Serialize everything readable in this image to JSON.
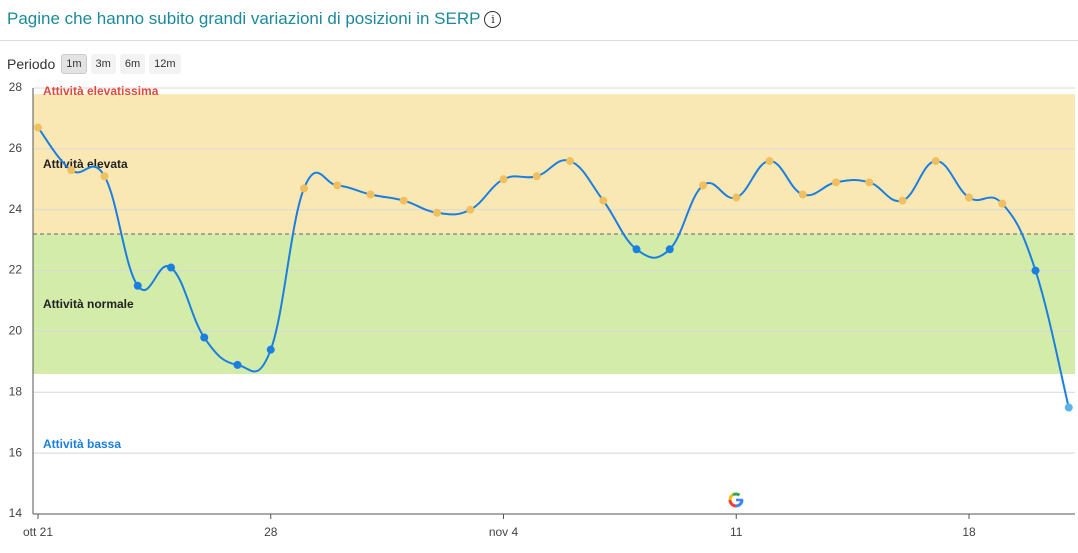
{
  "header": {
    "title": "Pagine che hanno subito grandi variazioni di posizioni in SERP",
    "period_label": "Periodo",
    "period_options": [
      "1m",
      "3m",
      "6m",
      "12m"
    ],
    "selected_period": "1m"
  },
  "chart_data": {
    "type": "line",
    "categories": [
      "ott 21",
      null,
      null,
      null,
      null,
      null,
      null,
      "28",
      null,
      null,
      null,
      null,
      null,
      null,
      "nov 4",
      null,
      null,
      null,
      null,
      null,
      null,
      "11",
      null,
      null,
      null,
      null,
      null,
      null,
      "18",
      null,
      null,
      null
    ],
    "series": [
      {
        "color": "#1a7fe0",
        "values": [
          26.7,
          25.3,
          25.1,
          21.5,
          22.1,
          19.8,
          18.9,
          19.4,
          24.7,
          24.8,
          24.5,
          24.3,
          23.9,
          24.0,
          25.0,
          25.1,
          25.6,
          24.3,
          22.7,
          22.7,
          24.8,
          24.4,
          25.6,
          24.5,
          24.9,
          24.9,
          24.3,
          25.6,
          24.4,
          24.2,
          22.0,
          17.5
        ]
      }
    ],
    "bands": [
      {
        "label": "Attività elevatissima",
        "from": 27.8,
        "to": 28,
        "color": "#ffffff",
        "label_color": "#e04a3a",
        "point_color": "#f0c060"
      },
      {
        "label": "Attività elevata",
        "from": 23.2,
        "to": 27.8,
        "color": "#fae8b4",
        "label_color": "#222222",
        "point_color": "#f0c060"
      },
      {
        "label": "Attività normale",
        "from": 18.6,
        "to": 23.2,
        "color": "#d3ecaa",
        "label_color": "#222222",
        "point_color": "#1a7fe0"
      },
      {
        "label": "Attività bassa",
        "from": 14,
        "to": 18.6,
        "color": "#ffffff",
        "label_color": "#1a7fe0",
        "point_color": "#5ab4ec"
      }
    ],
    "ylim": [
      14,
      28
    ],
    "yticks": [
      14,
      16,
      18,
      20,
      22,
      24,
      26,
      28
    ],
    "grid": true
  }
}
